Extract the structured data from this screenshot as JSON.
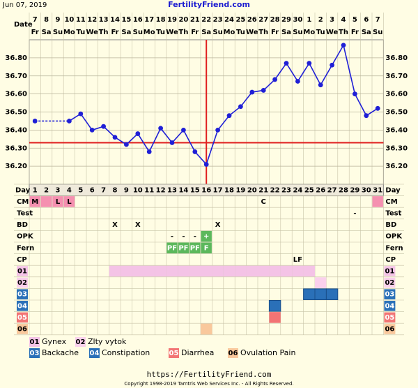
{
  "header": {
    "date": "Jun 07, 2019",
    "site": "FertilityFriend.com"
  },
  "chart_data": {
    "type": "line",
    "date_label": "Date",
    "day_label": "Day",
    "dates": [
      7,
      8,
      9,
      10,
      11,
      12,
      13,
      14,
      15,
      16,
      17,
      18,
      19,
      20,
      21,
      22,
      23,
      24,
      25,
      26,
      27,
      28,
      29,
      30,
      1,
      2,
      3,
      4,
      5,
      6,
      7
    ],
    "weekdays": [
      "Fr",
      "Sa",
      "Su",
      "Mo",
      "Tu",
      "We",
      "Th",
      "Fr",
      "Sa",
      "Su",
      "Mo",
      "Tu",
      "We",
      "Th",
      "Fr",
      "Sa",
      "Su",
      "Mo",
      "Tu",
      "We",
      "Th",
      "Fr",
      "Sa",
      "Su",
      "Mo",
      "Tu",
      "We",
      "Th",
      "Fr",
      "Sa",
      "Su"
    ],
    "days": [
      1,
      2,
      3,
      4,
      5,
      6,
      7,
      8,
      9,
      10,
      11,
      12,
      13,
      14,
      15,
      16,
      17,
      18,
      19,
      20,
      21,
      22,
      23,
      24,
      25,
      26,
      27,
      28,
      29,
      30,
      31
    ],
    "values": [
      36.45,
      null,
      null,
      36.45,
      36.49,
      36.4,
      36.42,
      36.36,
      36.32,
      36.38,
      36.28,
      36.41,
      36.33,
      36.4,
      36.28,
      36.21,
      36.4,
      36.48,
      36.53,
      36.61,
      36.62,
      36.68,
      36.77,
      36.67,
      36.77,
      36.65,
      36.76,
      36.87,
      36.6,
      36.48,
      36.52
    ],
    "color": "#1f1fd6",
    "ylim": [
      36.1,
      36.9
    ],
    "yticks": [
      {
        "value": 36.2,
        "label": "36.20"
      },
      {
        "value": 36.3,
        "label": "36.30"
      },
      {
        "value": 36.4,
        "label": "36.40"
      },
      {
        "value": 36.5,
        "label": "36.50"
      },
      {
        "value": 36.6,
        "label": "36.60"
      },
      {
        "value": 36.7,
        "label": "36.70"
      },
      {
        "value": 36.8,
        "label": "36.80"
      }
    ],
    "grid": true,
    "coverline": 36.33,
    "ovulation_day": 16,
    "marker_color": "#e02020"
  },
  "rows": [
    {
      "label": "CM",
      "entries": [
        {
          "day": 1,
          "text": "M",
          "color": "#f590b0"
        },
        {
          "day": 2,
          "color": "#f590b0"
        },
        {
          "day": 3,
          "text": "L",
          "color": "#f590b0"
        },
        {
          "day": 4,
          "text": "L",
          "color": "#f590b0"
        },
        {
          "day": 21,
          "text": "C"
        },
        {
          "day": 31,
          "color": "#f590b0"
        }
      ]
    },
    {
      "label": "Test",
      "entries": [
        {
          "day": 29,
          "text": "-"
        }
      ]
    },
    {
      "label": "BD",
      "entries": [
        {
          "day": 8,
          "text": "X"
        },
        {
          "day": 10,
          "text": "X"
        },
        {
          "day": 17,
          "text": "X"
        }
      ]
    },
    {
      "label": "OPK",
      "entries": [
        {
          "day": 13,
          "text": "-"
        },
        {
          "day": 14,
          "text": "-"
        },
        {
          "day": 15,
          "text": "-"
        },
        {
          "day": 16,
          "text": "+",
          "color": "#5cb85c"
        }
      ]
    },
    {
      "label": "Fern",
      "entries": [
        {
          "day": 13,
          "text": "PF",
          "color": "#5cb85c"
        },
        {
          "day": 14,
          "text": "PF",
          "color": "#5cb85c"
        },
        {
          "day": 15,
          "text": "PF",
          "color": "#5cb85c"
        },
        {
          "day": 16,
          "text": "F",
          "color": "#5cb85c"
        }
      ]
    },
    {
      "label": "CP",
      "entries": [
        {
          "day": 24,
          "text": "LF"
        }
      ]
    }
  ],
  "symptoms": [
    {
      "code": "01",
      "name": "Gynex",
      "color": "#f4c3e6",
      "text_color": "#000",
      "days": [
        8,
        9,
        10,
        11,
        12,
        13,
        14,
        15,
        16,
        17,
        18,
        19,
        20,
        21,
        22,
        23,
        24,
        25
      ]
    },
    {
      "code": "02",
      "name": "Zlty vytok",
      "color": "#fad0ec",
      "text_color": "#000",
      "days": [
        26
      ]
    },
    {
      "code": "03",
      "name": "Backache",
      "color": "#2a70b8",
      "text_color": "#fff",
      "days": [
        25,
        26,
        27
      ]
    },
    {
      "code": "04",
      "name": "Constipation",
      "color": "#2a70b8",
      "text_color": "#fff",
      "days": [
        22
      ]
    },
    {
      "code": "05",
      "name": "Diarrhea",
      "color": "#f27474",
      "text_color": "#fff",
      "days": [
        22
      ]
    },
    {
      "code": "06",
      "name": "Ovulation Pain",
      "color": "#f9c89c",
      "text_color": "#000",
      "days": [
        16
      ]
    }
  ],
  "footer": {
    "url": "https://FertilityFriend.com",
    "copyright": "Copyright 1998-2019 Tamtris Web Services Inc. - All Rights Reserved."
  }
}
